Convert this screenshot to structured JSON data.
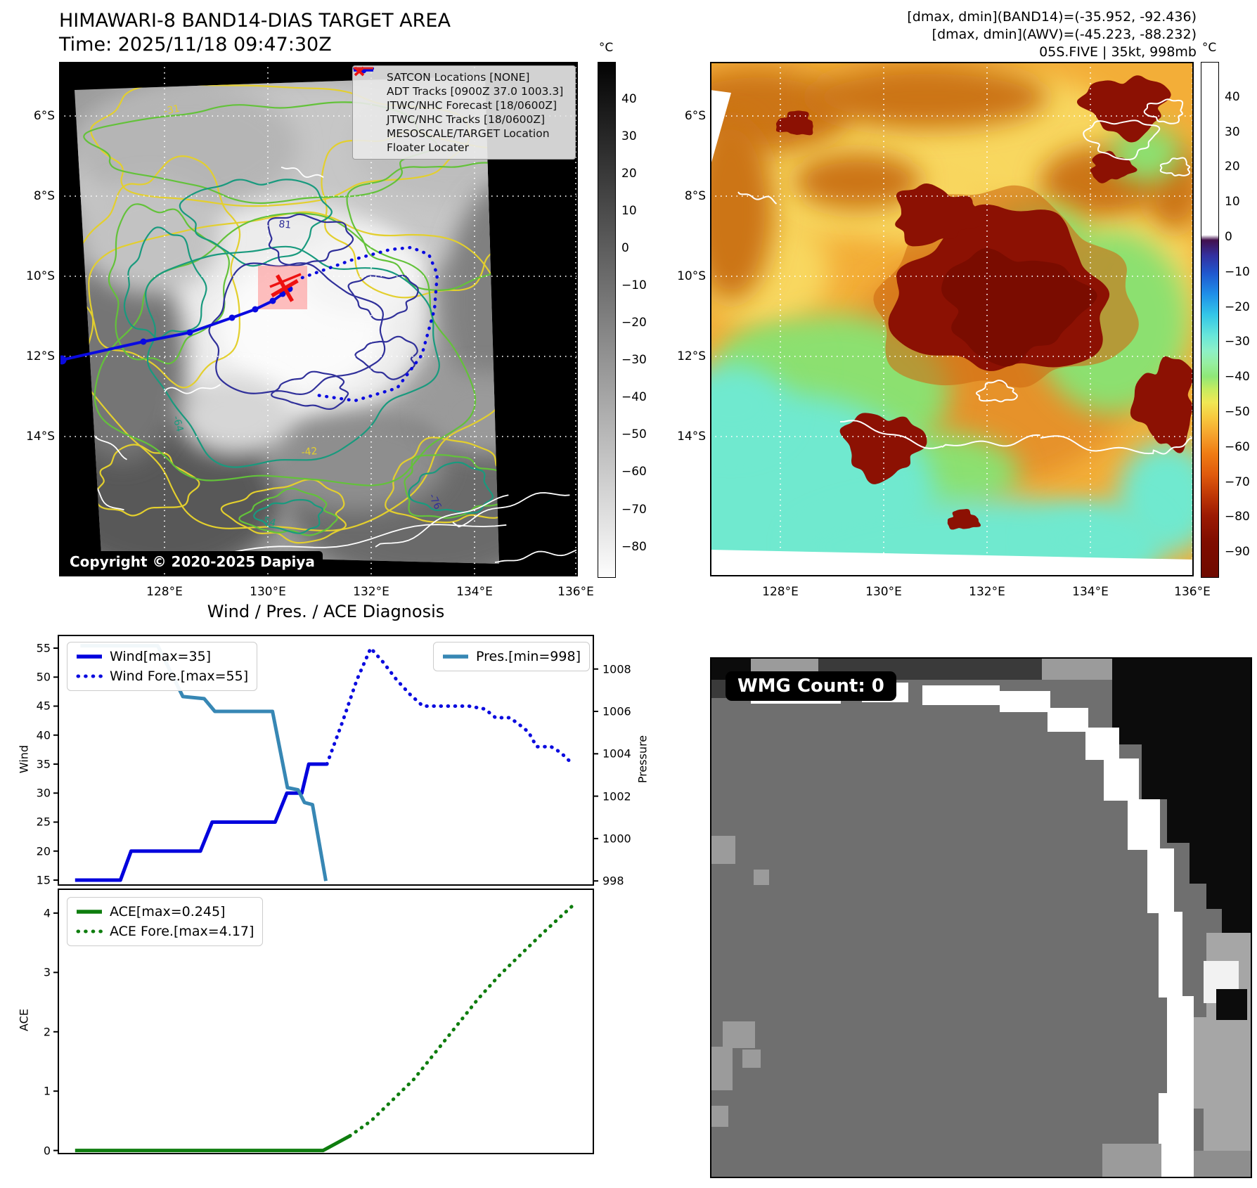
{
  "band14_panel": {
    "title": "HIMAWARI-8 BAND14-DIAS TARGET AREA",
    "subtitle": "Time: 2025/11/18 09:47:30Z",
    "copyright_badge": "Copyright © 2020-2025 Dapiya",
    "legend_items": [
      {
        "label": "SATCON Locations [NONE]",
        "marker": "satcon-x",
        "color": "#29c5c5"
      },
      {
        "label": "ADT Tracks [0900Z 37.0 1003.3]",
        "marker": "solid-line",
        "color": "#007a00"
      },
      {
        "label": "JTWC/NHC Forecast [18/0600Z]",
        "marker": "dotted-line",
        "color": "#0b0bdf"
      },
      {
        "label": "JTWC/NHC Tracks [18/0600Z]",
        "marker": "line-with-dot",
        "color": "#0b0bdf"
      },
      {
        "label": "MESOSCALE/TARGET Location",
        "marker": "target-x",
        "color": "#ee1111"
      },
      {
        "label": "Floater Locater",
        "marker": "solid-line",
        "color": "#dd2222"
      }
    ],
    "lat_ticks": [
      "6°S",
      "8°S",
      "10°S",
      "12°S",
      "14°S"
    ],
    "lon_ticks": [
      "128°E",
      "130°E",
      "132°E",
      "134°E",
      "136°E"
    ],
    "colorbar": {
      "unit": "°C",
      "ticks": [
        40,
        30,
        20,
        10,
        0,
        -10,
        -20,
        -30,
        -40,
        -50,
        -60,
        -70,
        -80
      ],
      "vmax": 50,
      "vmin": -88
    },
    "contour_labels": [
      "-31",
      "-42",
      "-54",
      "-64",
      "-76",
      "81"
    ]
  },
  "awv_panel": {
    "stats_line1": "[dmax, dmin](BAND14)=(-35.952, -92.436)",
    "stats_line2": "[dmax, dmin](AWV)=(-45.223, -88.232)",
    "storm_line": "05S.FIVE | 35kt, 998mb",
    "lat_ticks": [
      "6°S",
      "8°S",
      "10°S",
      "12°S",
      "14°S"
    ],
    "lon_ticks": [
      "128°E",
      "130°E",
      "132°E",
      "134°E",
      "136°E"
    ],
    "colorbar": {
      "unit": "°C",
      "ticks": [
        40,
        30,
        20,
        10,
        0,
        -10,
        -20,
        -30,
        -40,
        -50,
        -60,
        -70,
        -80,
        -90
      ],
      "vmax": 50,
      "vmin": -97
    }
  },
  "diagnosis": {
    "title": "Wind / Pres. / ACE Diagnosis"
  },
  "wmg_panel": {
    "count_label": "WMG Count: 0"
  },
  "chart_data": [
    {
      "type": "line",
      "title": "Wind / Pres. / ACE Diagnosis",
      "x_axis": {
        "label": "",
        "range": [
          0,
          1
        ],
        "note": "forecast time axis, no tick labels shown"
      },
      "left_axis": {
        "label": "Wind",
        "ticks": [
          15,
          20,
          25,
          30,
          35,
          40,
          45,
          50,
          55
        ],
        "lim": [
          14.27,
          57.06
        ]
      },
      "right_axis": {
        "label": "Pressure",
        "ticks": [
          998,
          1000,
          1002,
          1004,
          1006,
          1008
        ],
        "lim": [
          997.84,
          1009.55
        ]
      },
      "grid": false,
      "series": [
        {
          "name": "Wind[max=35]",
          "axis": "left",
          "line": "solid",
          "color": "#0202dd",
          "points": [
            [
              0.03,
              15
            ],
            [
              0.115,
              15
            ],
            [
              0.135,
              20
            ],
            [
              0.265,
              20
            ],
            [
              0.287,
              25
            ],
            [
              0.405,
              25
            ],
            [
              0.427,
              30
            ],
            [
              0.455,
              30
            ],
            [
              0.468,
              35
            ],
            [
              0.502,
              35
            ]
          ]
        },
        {
          "name": "Wind Fore.[max=55]",
          "axis": "left",
          "line": "dotted",
          "color": "#0b0bdf",
          "points": [
            [
              0.502,
              35
            ],
            [
              0.532,
              42.5
            ],
            [
              0.558,
              49.5
            ],
            [
              0.584,
              55
            ],
            [
              0.608,
              52.5
            ],
            [
              0.633,
              49.5
            ],
            [
              0.658,
              47
            ],
            [
              0.682,
              45
            ],
            [
              0.768,
              45
            ],
            [
              0.798,
              44.5
            ],
            [
              0.818,
              43
            ],
            [
              0.845,
              43
            ],
            [
              0.867,
              41.5
            ],
            [
              0.88,
              40.5
            ],
            [
              0.895,
              38
            ],
            [
              0.922,
              38
            ],
            [
              0.94,
              37
            ],
            [
              0.957,
              35.5
            ]
          ]
        },
        {
          "name": "Pres.[min=998]",
          "axis": "right",
          "line": "solid",
          "color": "#3787b4",
          "points": [
            [
              0.04,
              1009.1
            ],
            [
              0.185,
              1009.1
            ],
            [
              0.232,
              1006.7
            ],
            [
              0.272,
              1006.6
            ],
            [
              0.292,
              1006.0
            ],
            [
              0.4,
              1006.0
            ],
            [
              0.428,
              1002.4
            ],
            [
              0.448,
              1002.3
            ],
            [
              0.46,
              1001.7
            ],
            [
              0.475,
              1001.6
            ],
            [
              0.5,
              998.0
            ]
          ]
        }
      ]
    },
    {
      "type": "line",
      "x_axis": {
        "label": "",
        "range": [
          0,
          1
        ],
        "note": "forecast time axis, no tick labels shown"
      },
      "y_axis": {
        "label": "ACE",
        "ticks": [
          0,
          1,
          2,
          3,
          4
        ],
        "lim": [
          -0.04,
          4.39
        ]
      },
      "grid": false,
      "series": [
        {
          "name": "ACE[max=0.245]",
          "line": "solid",
          "color": "#0e7d0e",
          "points": [
            [
              0.03,
              0
            ],
            [
              0.495,
              0
            ],
            [
              0.545,
              0.245
            ]
          ]
        },
        {
          "name": "ACE Fore.[max=4.17]",
          "line": "dotted",
          "color": "#0e7d0e",
          "points": [
            [
              0.545,
              0.245
            ],
            [
              0.585,
              0.5
            ],
            [
              0.625,
              0.85
            ],
            [
              0.665,
              1.2
            ],
            [
              0.705,
              1.65
            ],
            [
              0.745,
              2.1
            ],
            [
              0.785,
              2.55
            ],
            [
              0.825,
              2.95
            ],
            [
              0.865,
              3.3
            ],
            [
              0.905,
              3.65
            ],
            [
              0.935,
              3.9
            ],
            [
              0.968,
              4.17
            ]
          ]
        }
      ]
    }
  ]
}
